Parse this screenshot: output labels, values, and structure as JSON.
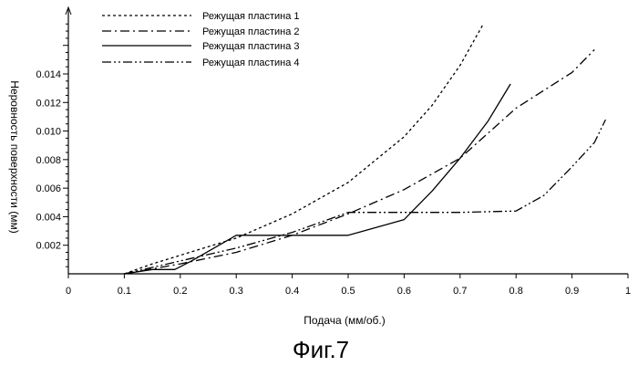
{
  "chart_data": {
    "type": "line",
    "title": "",
    "xlabel": "Подача (мм/об.)",
    "ylabel": "Неровность поверхности (мм)",
    "caption": "Фиг.7",
    "xlim": [
      0,
      1.0
    ],
    "ylim": [
      0,
      0.016
    ],
    "x_ticks": [
      "0",
      "0.1",
      "0.2",
      "0.3",
      "0.4",
      "0.5",
      "0.6",
      "0.7",
      "0.8",
      "0.9",
      "1"
    ],
    "y_ticks": [
      "0.002",
      "0.004",
      "0.006",
      "0.008",
      "0.010",
      "0.012",
      "0.014"
    ],
    "grid": false,
    "legend_position": "top-left",
    "series": [
      {
        "name": "Режущая пластина 1",
        "dash": "dotted",
        "points": [
          [
            0.1,
            0.0
          ],
          [
            0.15,
            0.0007
          ],
          [
            0.2,
            0.0013
          ],
          [
            0.3,
            0.0025
          ],
          [
            0.4,
            0.0042
          ],
          [
            0.5,
            0.0064
          ],
          [
            0.6,
            0.0096
          ],
          [
            0.65,
            0.0118
          ],
          [
            0.7,
            0.0146
          ],
          [
            0.74,
            0.0174
          ]
        ]
      },
      {
        "name": "Режущая пластина 2",
        "dash": "dashdot",
        "points": [
          [
            0.1,
            0.0
          ],
          [
            0.2,
            0.0007
          ],
          [
            0.3,
            0.0015
          ],
          [
            0.4,
            0.0027
          ],
          [
            0.5,
            0.0042
          ],
          [
            0.6,
            0.0059
          ],
          [
            0.7,
            0.0081
          ],
          [
            0.8,
            0.0116
          ],
          [
            0.9,
            0.0141
          ],
          [
            0.94,
            0.0157
          ]
        ]
      },
      {
        "name": "Режущая пластина 3",
        "dash": "solid",
        "points": [
          [
            0.1,
            0.0
          ],
          [
            0.15,
            0.0003
          ],
          [
            0.19,
            0.0003
          ],
          [
            0.22,
            0.0009
          ],
          [
            0.3,
            0.0027
          ],
          [
            0.4,
            0.0027
          ],
          [
            0.5,
            0.0027
          ],
          [
            0.6,
            0.0038
          ],
          [
            0.65,
            0.0058
          ],
          [
            0.7,
            0.0081
          ],
          [
            0.75,
            0.0107
          ],
          [
            0.79,
            0.0133
          ]
        ]
      },
      {
        "name": "Режущая пластина 4",
        "dash": "dashdotdot",
        "points": [
          [
            0.1,
            0.0
          ],
          [
            0.2,
            0.0009
          ],
          [
            0.3,
            0.0018
          ],
          [
            0.4,
            0.0029
          ],
          [
            0.5,
            0.0043
          ],
          [
            0.6,
            0.0043
          ],
          [
            0.7,
            0.0043
          ],
          [
            0.8,
            0.0044
          ],
          [
            0.85,
            0.0055
          ],
          [
            0.9,
            0.0075
          ],
          [
            0.94,
            0.0092
          ],
          [
            0.96,
            0.0108
          ]
        ]
      }
    ]
  }
}
